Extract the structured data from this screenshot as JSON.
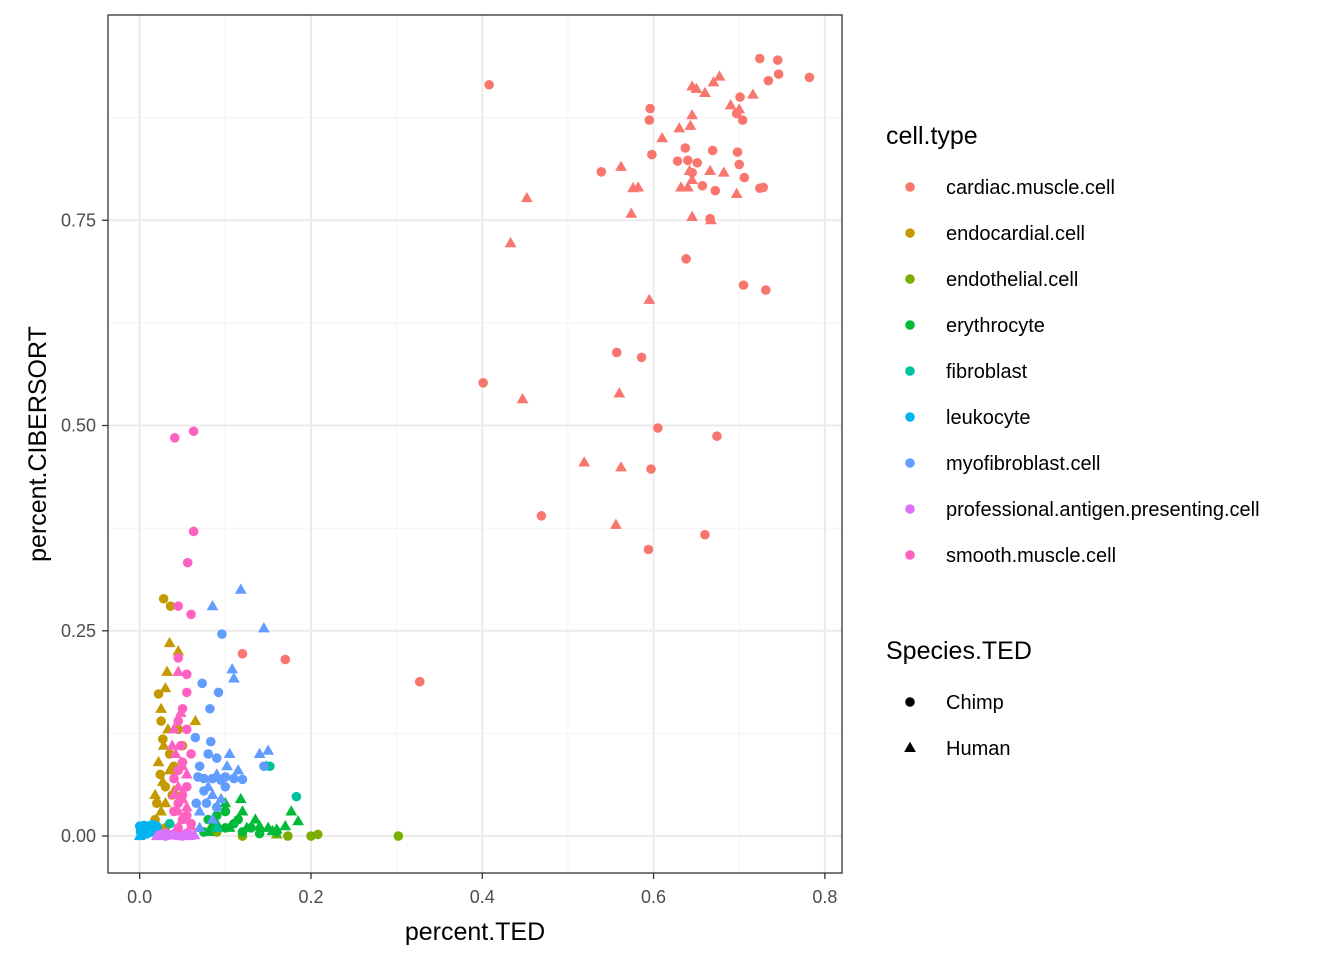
{
  "chart_data": {
    "type": "scatter",
    "title": "",
    "xlabel": "percent.TED",
    "ylabel": "percent.CIBERSORT",
    "xlim": [
      -0.037,
      0.82
    ],
    "ylim": [
      -0.045,
      1.0
    ],
    "x_ticks": [
      0.0,
      0.2,
      0.4,
      0.6,
      0.8
    ],
    "x_tick_labels": [
      "0.0",
      "0.2",
      "0.4",
      "0.6",
      "0.8"
    ],
    "y_ticks": [
      0.0,
      0.25,
      0.5,
      0.75
    ],
    "y_tick_labels": [
      "0.00",
      "0.25",
      "0.50",
      "0.75"
    ],
    "grid": true,
    "legend_position": "right",
    "color_legend": {
      "title": "cell.type",
      "items": [
        {
          "label": "cardiac.muscle.cell",
          "color": "#F8766D"
        },
        {
          "label": "endocardial.cell",
          "color": "#C49A00"
        },
        {
          "label": "endothelial.cell",
          "color": "#7CAE00"
        },
        {
          "label": "erythrocyte",
          "color": "#00BA38"
        },
        {
          "label": "fibroblast",
          "color": "#00C19F"
        },
        {
          "label": "leukocyte",
          "color": "#00B4F0"
        },
        {
          "label": "myofibroblast.cell",
          "color": "#619CFF"
        },
        {
          "label": "professional.antigen.presenting.cell",
          "color": "#DB72FB"
        },
        {
          "label": "smooth.muscle.cell",
          "color": "#FF61C3"
        }
      ]
    },
    "shape_legend": {
      "title": "Species.TED",
      "items": [
        {
          "label": "Chimp",
          "shape": "circle"
        },
        {
          "label": "Human",
          "shape": "triangle"
        }
      ]
    },
    "series": [
      {
        "cell_type": "cardiac.muscle.cell",
        "species": "Chimp",
        "points": [
          [
            0.408,
            0.915
          ],
          [
            0.724,
            0.947
          ],
          [
            0.745,
            0.945
          ],
          [
            0.746,
            0.928
          ],
          [
            0.782,
            0.924
          ],
          [
            0.734,
            0.92
          ],
          [
            0.596,
            0.886
          ],
          [
            0.701,
            0.9
          ],
          [
            0.697,
            0.88
          ],
          [
            0.595,
            0.872
          ],
          [
            0.704,
            0.872
          ],
          [
            0.637,
            0.838
          ],
          [
            0.669,
            0.835
          ],
          [
            0.698,
            0.833
          ],
          [
            0.598,
            0.83
          ],
          [
            0.64,
            0.823
          ],
          [
            0.628,
            0.822
          ],
          [
            0.651,
            0.82
          ],
          [
            0.7,
            0.818
          ],
          [
            0.539,
            0.809
          ],
          [
            0.645,
            0.808
          ],
          [
            0.706,
            0.802
          ],
          [
            0.657,
            0.792
          ],
          [
            0.672,
            0.786
          ],
          [
            0.724,
            0.789
          ],
          [
            0.728,
            0.79
          ],
          [
            0.666,
            0.752
          ],
          [
            0.638,
            0.703
          ],
          [
            0.705,
            0.671
          ],
          [
            0.731,
            0.665
          ],
          [
            0.557,
            0.589
          ],
          [
            0.586,
            0.583
          ],
          [
            0.401,
            0.552
          ],
          [
            0.605,
            0.497
          ],
          [
            0.674,
            0.487
          ],
          [
            0.597,
            0.447
          ],
          [
            0.469,
            0.39
          ],
          [
            0.594,
            0.349
          ],
          [
            0.66,
            0.367
          ],
          [
            0.12,
            0.222
          ],
          [
            0.17,
            0.215
          ],
          [
            0.327,
            0.188
          ],
          [
            0.045,
            0.005
          ],
          [
            0.1,
            0.03
          ],
          [
            0.06,
            0.015
          ]
        ]
      },
      {
        "cell_type": "cardiac.muscle.cell",
        "species": "Human",
        "points": [
          [
            0.645,
            0.913
          ],
          [
            0.65,
            0.91
          ],
          [
            0.67,
            0.918
          ],
          [
            0.677,
            0.925
          ],
          [
            0.66,
            0.905
          ],
          [
            0.716,
            0.903
          ],
          [
            0.69,
            0.89
          ],
          [
            0.645,
            0.878
          ],
          [
            0.7,
            0.885
          ],
          [
            0.63,
            0.862
          ],
          [
            0.643,
            0.865
          ],
          [
            0.61,
            0.85
          ],
          [
            0.562,
            0.815
          ],
          [
            0.64,
            0.79
          ],
          [
            0.642,
            0.81
          ],
          [
            0.682,
            0.808
          ],
          [
            0.666,
            0.81
          ],
          [
            0.645,
            0.799
          ],
          [
            0.576,
            0.789
          ],
          [
            0.582,
            0.79
          ],
          [
            0.632,
            0.79
          ],
          [
            0.697,
            0.782
          ],
          [
            0.452,
            0.777
          ],
          [
            0.574,
            0.758
          ],
          [
            0.645,
            0.754
          ],
          [
            0.667,
            0.75
          ],
          [
            0.433,
            0.722
          ],
          [
            0.595,
            0.653
          ],
          [
            0.56,
            0.539
          ],
          [
            0.447,
            0.532
          ],
          [
            0.519,
            0.455
          ],
          [
            0.562,
            0.449
          ],
          [
            0.556,
            0.379
          ]
        ]
      },
      {
        "cell_type": "endocardial.cell",
        "species": "Chimp",
        "points": [
          [
            0.028,
            0.289
          ],
          [
            0.036,
            0.28
          ],
          [
            0.022,
            0.173
          ],
          [
            0.025,
            0.14
          ],
          [
            0.027,
            0.118
          ],
          [
            0.035,
            0.1
          ],
          [
            0.04,
            0.085
          ],
          [
            0.03,
            0.06
          ],
          [
            0.02,
            0.04
          ],
          [
            0.045,
            0.13
          ],
          [
            0.05,
            0.11
          ],
          [
            0.018,
            0.02
          ],
          [
            0.03,
            0.01
          ],
          [
            0.024,
            0.075
          ],
          [
            0.038,
            0.05
          ]
        ]
      },
      {
        "cell_type": "endocardial.cell",
        "species": "Human",
        "points": [
          [
            0.035,
            0.235
          ],
          [
            0.045,
            0.225
          ],
          [
            0.032,
            0.2
          ],
          [
            0.03,
            0.18
          ],
          [
            0.025,
            0.155
          ],
          [
            0.033,
            0.13
          ],
          [
            0.028,
            0.11
          ],
          [
            0.022,
            0.09
          ],
          [
            0.035,
            0.08
          ],
          [
            0.027,
            0.066
          ],
          [
            0.018,
            0.05
          ],
          [
            0.03,
            0.04
          ],
          [
            0.04,
            0.055
          ],
          [
            0.025,
            0.03
          ],
          [
            0.065,
            0.14
          ]
        ]
      },
      {
        "cell_type": "endothelial.cell",
        "species": "Chimp",
        "points": [
          [
            0.302,
            0.0
          ],
          [
            0.208,
            0.002
          ],
          [
            0.2,
            0.0
          ],
          [
            0.173,
            0.0
          ],
          [
            0.09,
            0.005
          ],
          [
            0.12,
            0.0
          ]
        ]
      },
      {
        "cell_type": "endothelial.cell",
        "species": "Human",
        "points": [
          [
            0.16,
            0.002
          ]
        ]
      },
      {
        "cell_type": "erythrocyte",
        "species": "Chimp",
        "points": [
          [
            0.08,
            0.02
          ],
          [
            0.09,
            0.025
          ],
          [
            0.1,
            0.01
          ],
          [
            0.11,
            0.015
          ],
          [
            0.12,
            0.005
          ],
          [
            0.13,
            0.01
          ],
          [
            0.14,
            0.003
          ],
          [
            0.1,
            0.03
          ],
          [
            0.085,
            0.01
          ],
          [
            0.075,
            0.005
          ],
          [
            0.115,
            0.02
          ],
          [
            0.16,
            0.005
          ]
        ]
      },
      {
        "cell_type": "erythrocyte",
        "species": "Human",
        "points": [
          [
            0.118,
            0.045
          ],
          [
            0.12,
            0.03
          ],
          [
            0.135,
            0.02
          ],
          [
            0.15,
            0.01
          ],
          [
            0.155,
            0.006
          ],
          [
            0.185,
            0.018
          ],
          [
            0.177,
            0.03
          ],
          [
            0.09,
            0.015
          ],
          [
            0.1,
            0.04
          ],
          [
            0.105,
            0.01
          ],
          [
            0.125,
            0.01
          ],
          [
            0.14,
            0.012
          ],
          [
            0.16,
            0.008
          ],
          [
            0.17,
            0.012
          ],
          [
            0.08,
            0.005
          ]
        ]
      },
      {
        "cell_type": "fibroblast",
        "species": "Chimp",
        "points": [
          [
            0.183,
            0.048
          ],
          [
            0.152,
            0.085
          ],
          [
            0.035,
            0.015
          ],
          [
            0.02,
            0.01
          ]
        ]
      },
      {
        "cell_type": "fibroblast",
        "species": "Human",
        "points": [
          [
            0.148,
            0.085
          ],
          [
            0.02,
            0.01
          ],
          [
            0.09,
            0.01
          ]
        ]
      },
      {
        "cell_type": "leukocyte",
        "species": "Chimp",
        "points": [
          [
            0.0,
            0.012
          ],
          [
            0.005,
            0.013
          ],
          [
            0.01,
            0.012
          ],
          [
            0.015,
            0.014
          ],
          [
            0.02,
            0.012
          ],
          [
            0.001,
            0.005
          ],
          [
            0.004,
            0.002
          ],
          [
            0.008,
            0.004
          ],
          [
            0.012,
            0.006
          ],
          [
            0.003,
            0.001
          ]
        ]
      },
      {
        "cell_type": "leukocyte",
        "species": "Human",
        "points": [
          [
            0.0,
            0.0
          ],
          [
            0.004,
            0.002
          ],
          [
            0.008,
            0.006
          ],
          [
            0.012,
            0.004
          ],
          [
            0.016,
            0.008
          ],
          [
            0.006,
            0.003
          ]
        ]
      },
      {
        "cell_type": "myofibroblast.cell",
        "species": "Chimp",
        "points": [
          [
            0.096,
            0.246
          ],
          [
            0.073,
            0.186
          ],
          [
            0.092,
            0.175
          ],
          [
            0.082,
            0.155
          ],
          [
            0.065,
            0.12
          ],
          [
            0.083,
            0.115
          ],
          [
            0.08,
            0.1
          ],
          [
            0.09,
            0.095
          ],
          [
            0.07,
            0.085
          ],
          [
            0.075,
            0.07
          ],
          [
            0.068,
            0.072
          ],
          [
            0.085,
            0.07
          ],
          [
            0.095,
            0.068
          ],
          [
            0.1,
            0.072
          ],
          [
            0.11,
            0.07
          ],
          [
            0.12,
            0.069
          ],
          [
            0.145,
            0.085
          ],
          [
            0.075,
            0.055
          ],
          [
            0.1,
            0.06
          ],
          [
            0.066,
            0.04
          ],
          [
            0.078,
            0.04
          ],
          [
            0.09,
            0.035
          ]
        ]
      },
      {
        "cell_type": "myofibroblast.cell",
        "species": "Human",
        "points": [
          [
            0.118,
            0.3
          ],
          [
            0.085,
            0.28
          ],
          [
            0.145,
            0.253
          ],
          [
            0.108,
            0.203
          ],
          [
            0.11,
            0.192
          ],
          [
            0.15,
            0.104
          ],
          [
            0.14,
            0.1
          ],
          [
            0.105,
            0.1
          ],
          [
            0.115,
            0.08
          ],
          [
            0.102,
            0.085
          ],
          [
            0.09,
            0.075
          ],
          [
            0.08,
            0.06
          ],
          [
            0.085,
            0.05
          ],
          [
            0.095,
            0.045
          ],
          [
            0.07,
            0.03
          ],
          [
            0.085,
            0.02
          ],
          [
            0.07,
            0.01
          ]
        ]
      },
      {
        "cell_type": "professional.antigen.presenting.cell",
        "species": "Chimp",
        "points": [
          [
            0.03,
            0.0
          ],
          [
            0.035,
            0.001
          ],
          [
            0.04,
            0.002
          ],
          [
            0.045,
            0.001
          ],
          [
            0.05,
            0.0
          ],
          [
            0.055,
            0.003
          ],
          [
            0.025,
            0.002
          ],
          [
            0.06,
            0.001
          ],
          [
            0.042,
            0.004
          ],
          [
            0.032,
            0.003
          ]
        ]
      },
      {
        "cell_type": "professional.antigen.presenting.cell",
        "species": "Human",
        "points": [
          [
            0.02,
            0.0
          ],
          [
            0.03,
            0.002
          ],
          [
            0.038,
            0.001
          ],
          [
            0.046,
            0.0
          ],
          [
            0.052,
            0.002
          ],
          [
            0.058,
            0.0
          ],
          [
            0.064,
            0.001
          ],
          [
            0.028,
            0.003
          ]
        ]
      },
      {
        "cell_type": "smooth.muscle.cell",
        "species": "Chimp",
        "points": [
          [
            0.041,
            0.485
          ],
          [
            0.063,
            0.493
          ],
          [
            0.063,
            0.371
          ],
          [
            0.056,
            0.333
          ],
          [
            0.045,
            0.28
          ],
          [
            0.06,
            0.27
          ],
          [
            0.045,
            0.217
          ],
          [
            0.055,
            0.197
          ],
          [
            0.055,
            0.175
          ],
          [
            0.05,
            0.155
          ],
          [
            0.045,
            0.14
          ],
          [
            0.055,
            0.13
          ],
          [
            0.048,
            0.11
          ],
          [
            0.06,
            0.1
          ],
          [
            0.05,
            0.09
          ],
          [
            0.045,
            0.08
          ],
          [
            0.04,
            0.07
          ],
          [
            0.055,
            0.06
          ],
          [
            0.05,
            0.05
          ],
          [
            0.045,
            0.04
          ],
          [
            0.04,
            0.03
          ],
          [
            0.055,
            0.025
          ],
          [
            0.05,
            0.02
          ],
          [
            0.06,
            0.015
          ],
          [
            0.045,
            0.01
          ]
        ]
      },
      {
        "cell_type": "smooth.muscle.cell",
        "species": "Human",
        "points": [
          [
            0.045,
            0.2
          ],
          [
            0.048,
            0.15
          ],
          [
            0.04,
            0.13
          ],
          [
            0.038,
            0.11
          ],
          [
            0.042,
            0.1
          ],
          [
            0.05,
            0.085
          ],
          [
            0.055,
            0.075
          ],
          [
            0.045,
            0.06
          ],
          [
            0.04,
            0.05
          ],
          [
            0.05,
            0.045
          ],
          [
            0.055,
            0.035
          ],
          [
            0.045,
            0.03
          ],
          [
            0.05,
            0.02
          ],
          [
            0.06,
            0.012
          ]
        ]
      }
    ]
  }
}
